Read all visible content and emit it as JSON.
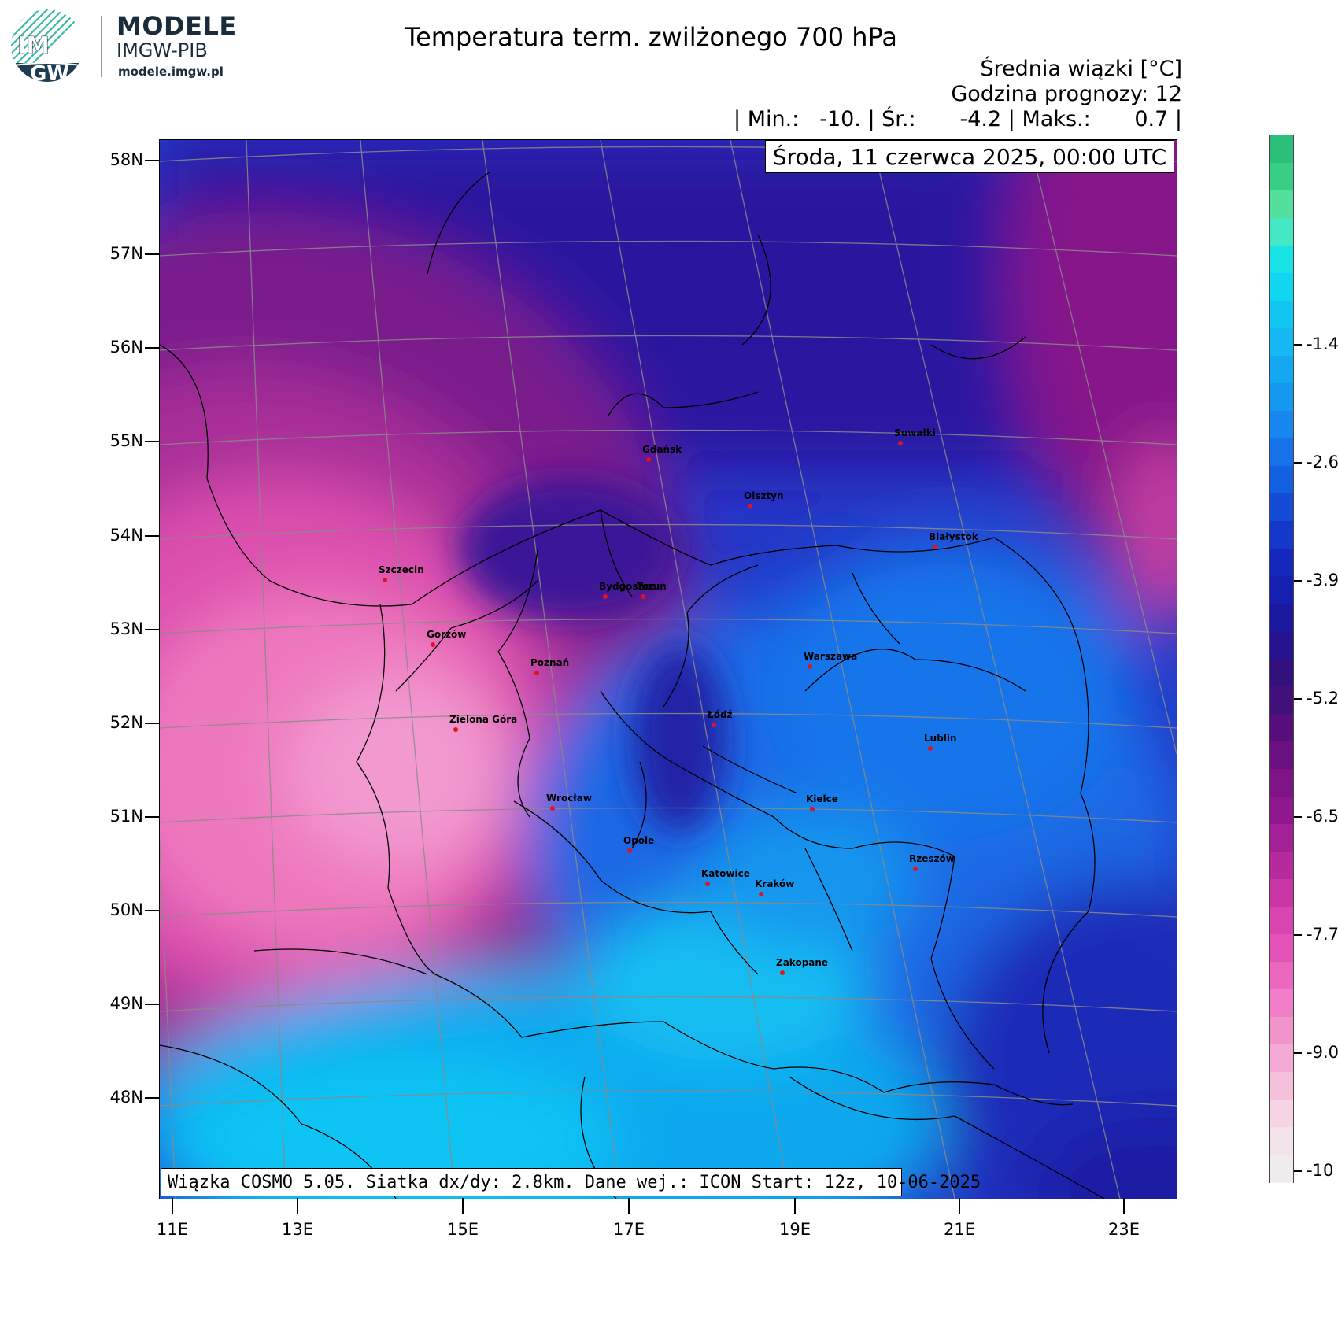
{
  "header": {
    "brand_title": "MODELE",
    "brand_sub": "IMGW-PIB",
    "brand_url": "modele.imgw.pl",
    "logo_text_top": "IM",
    "logo_text_bottom": "GW",
    "title": "Temperatura term. zwilżonego 700 hPa",
    "subtitle": "Średnia wiązki [°C]",
    "forecast": "Godzina prognozy: 12",
    "stats": {
      "min_label": "| Min.:",
      "min_value": "-10.",
      "mean_label": "| Śr.:",
      "mean_value": "-4.2",
      "max_label": "| Maks.:",
      "max_value": "0.7",
      "end": "|"
    }
  },
  "date_label": "Środa, 11 czerwca 2025, 00:00 UTC",
  "info_label": "Wiązka COSMO 5.05. Siatka dx/dy: 2.8km. Dane wej.: ICON Start: 12z, 10-06-2025",
  "axes": {
    "lat_labels": [
      "58N",
      "57N",
      "56N",
      "55N",
      "54N",
      "53N",
      "52N",
      "51N",
      "50N",
      "49N",
      "48N"
    ],
    "lon_labels": [
      "11E",
      "13E",
      "15E",
      "17E",
      "19E",
      "21E",
      "23E"
    ]
  },
  "colorbar": {
    "labels": [
      "-1.4",
      "-2.6",
      "-3.9",
      "-5.2",
      "-6.5",
      "-7.7",
      "-9.0",
      "-10"
    ],
    "colors": [
      "#2bbf7a",
      "#38cf84",
      "#55df9c",
      "#45e8c4",
      "#17e2e6",
      "#10d6f0",
      "#12c6f2",
      "#14b8f2",
      "#15a8f2",
      "#1598f0",
      "#1786ee",
      "#1672e8",
      "#1460e2",
      "#144cd8",
      "#1438cc",
      "#1428be",
      "#1620b0",
      "#1a189e",
      "#24128e",
      "#32107e",
      "#42107a",
      "#560e7c",
      "#6a1080",
      "#7e1486",
      "#90188e",
      "#a42096",
      "#b62a9e",
      "#c836a6",
      "#d844b0",
      "#e454b8",
      "#ec68c0",
      "#f07ec8",
      "#f294cc",
      "#f4aad4",
      "#f6c0dc",
      "#f6d4e4",
      "#f4e2ea",
      "#f0ecee"
    ]
  },
  "cities": [
    {
      "name": "Gdańsk"
    },
    {
      "name": "Suwałki"
    },
    {
      "name": "Olsztyn"
    },
    {
      "name": "Białystok"
    },
    {
      "name": "Szczecin"
    },
    {
      "name": "Bydgoszcz"
    },
    {
      "name": "Toruń"
    },
    {
      "name": "Gorzów"
    },
    {
      "name": "Poznań"
    },
    {
      "name": "Warszawa"
    },
    {
      "name": "Łódź"
    },
    {
      "name": "Zielona Góra"
    },
    {
      "name": "Lublin"
    },
    {
      "name": "Wrocław"
    },
    {
      "name": "Kielce"
    },
    {
      "name": "Opole"
    },
    {
      "name": "Rzeszów"
    },
    {
      "name": "Katowice"
    },
    {
      "name": "Kraków"
    },
    {
      "name": "Zakopane"
    }
  ]
}
